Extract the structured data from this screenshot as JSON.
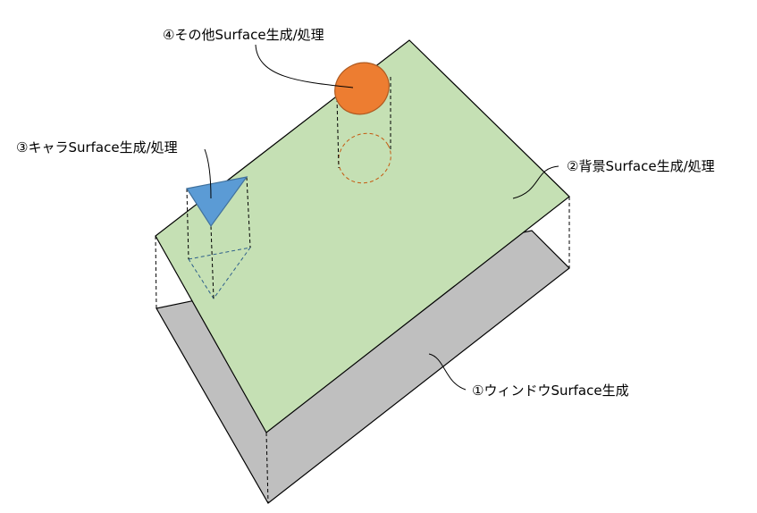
{
  "labels": {
    "window": "①ウィンドウSurface生成",
    "background": "②背景Surface生成/処理",
    "character": "③キャラSurface生成/処理",
    "other": "④その他Surface生成/処理"
  },
  "colors": {
    "window_fill": "#bfbfbf",
    "background_fill": "#c5e0b4",
    "character_fill": "#5b9bd5",
    "other_fill": "#ed7d31",
    "outline": "#000000"
  }
}
